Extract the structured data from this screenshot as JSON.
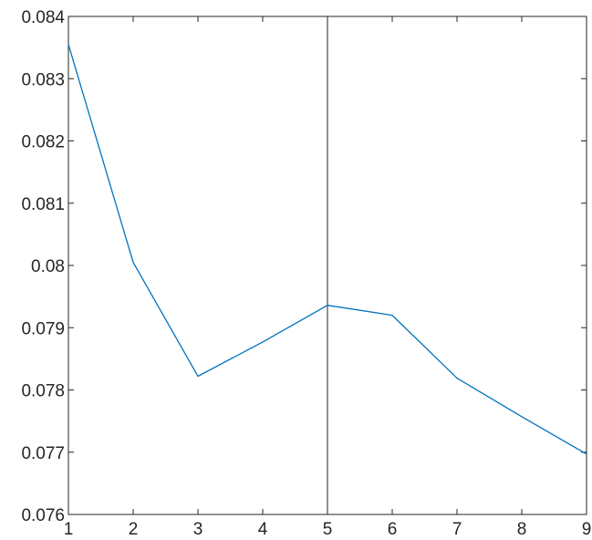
{
  "chart_data": {
    "type": "line",
    "title": "",
    "xlabel": "",
    "ylabel": "",
    "xlim": [
      1,
      9
    ],
    "ylim": [
      0.076,
      0.084
    ],
    "grid": false,
    "x_ticks": [
      1,
      2,
      3,
      4,
      5,
      6,
      7,
      8,
      9
    ],
    "x_tick_labels": [
      "1",
      "2",
      "3",
      "4",
      "5",
      "6",
      "7",
      "8",
      "9"
    ],
    "y_ticks": [
      0.076,
      0.077,
      0.078,
      0.079,
      0.08,
      0.081,
      0.082,
      0.083,
      0.084
    ],
    "y_tick_labels": [
      "0.076",
      "0.077",
      "0.078",
      "0.079",
      "0.08",
      "0.081",
      "0.082",
      "0.083",
      "0.084"
    ],
    "series": [
      {
        "color": "#0072BD",
        "x": [
          1,
          2,
          3,
          4,
          5,
          6,
          7,
          8,
          9
        ],
        "y": [
          0.08355,
          0.08005,
          0.07822,
          0.07877,
          0.07936,
          0.0792,
          0.07819,
          0.07757,
          0.07697
        ]
      }
    ],
    "vertical_line": {
      "x": 5,
      "color": "#262626"
    },
    "axis_color": "#262626"
  }
}
